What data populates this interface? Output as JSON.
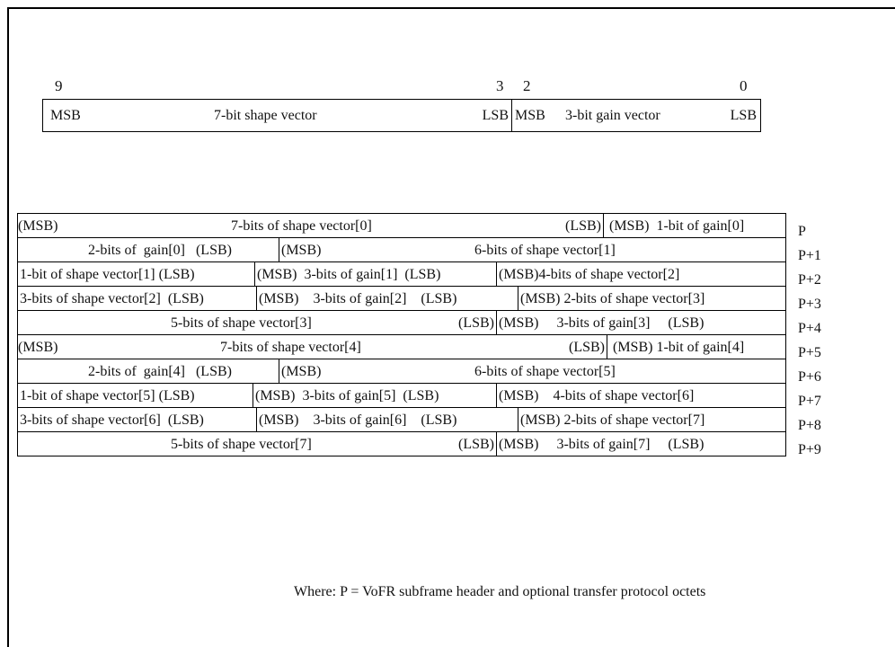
{
  "header": {
    "bit_numbers": [
      "9",
      "3",
      "2",
      "0"
    ],
    "shape": {
      "msb": "MSB",
      "label": "7-bit shape vector",
      "lsb": "LSB"
    },
    "gain": {
      "msb": "MSB",
      "label": "3-bit gain vector",
      "lsb": "LSB"
    }
  },
  "rows": [
    {
      "p": "P",
      "cells": [
        "(MSB)",
        "7-bits of shape vector[0]",
        "(LSB)",
        "(MSB)  1-bit of gain[0]"
      ]
    },
    {
      "p": "P+1",
      "cells": [
        "2-bits of  gain[0]   (LSB)",
        "(MSB)",
        "6-bits of shape vector[1]"
      ]
    },
    {
      "p": "P+2",
      "cells": [
        "1-bit of shape vector[1] (LSB)",
        "(MSB)  3-bits of gain[1]  (LSB)",
        "(MSB)4-bits of shape vector[2]"
      ]
    },
    {
      "p": "P+3",
      "cells": [
        "3-bits of shape vector[2]  (LSB)",
        "(MSB)    3-bits of gain[2]    (LSB)",
        "(MSB) 2-bits of shape vector[3]"
      ]
    },
    {
      "p": "P+4",
      "cells": [
        "5-bits of shape vector[3]",
        "(LSB)",
        "(MSB)     3-bits of gain[3]     (LSB)"
      ]
    },
    {
      "p": "P+5",
      "cells": [
        "(MSB)",
        "7-bits of shape vector[4]",
        "(LSB)",
        "(MSB) 1-bit of gain[4]"
      ]
    },
    {
      "p": "P+6",
      "cells": [
        "2-bits of  gain[4]   (LSB)",
        "(MSB)",
        "6-bits of shape vector[5]"
      ]
    },
    {
      "p": "P+7",
      "cells": [
        "1-bit of shape vector[5] (LSB)",
        "(MSB)  3-bits of gain[5]  (LSB)",
        "(MSB)    4-bits of shape vector[6]"
      ]
    },
    {
      "p": "P+8",
      "cells": [
        "3-bits of shape vector[6]  (LSB)",
        "(MSB)    3-bits of gain[6]    (LSB)",
        "(MSB) 2-bits of shape vector[7]"
      ]
    },
    {
      "p": "P+9",
      "cells": [
        "5-bits of shape vector[7]",
        "(LSB)",
        "(MSB)     3-bits of gain[7]     (LSB)"
      ]
    }
  ],
  "footnote": "Where: P = VoFR subframe header and optional transfer protocol octets"
}
